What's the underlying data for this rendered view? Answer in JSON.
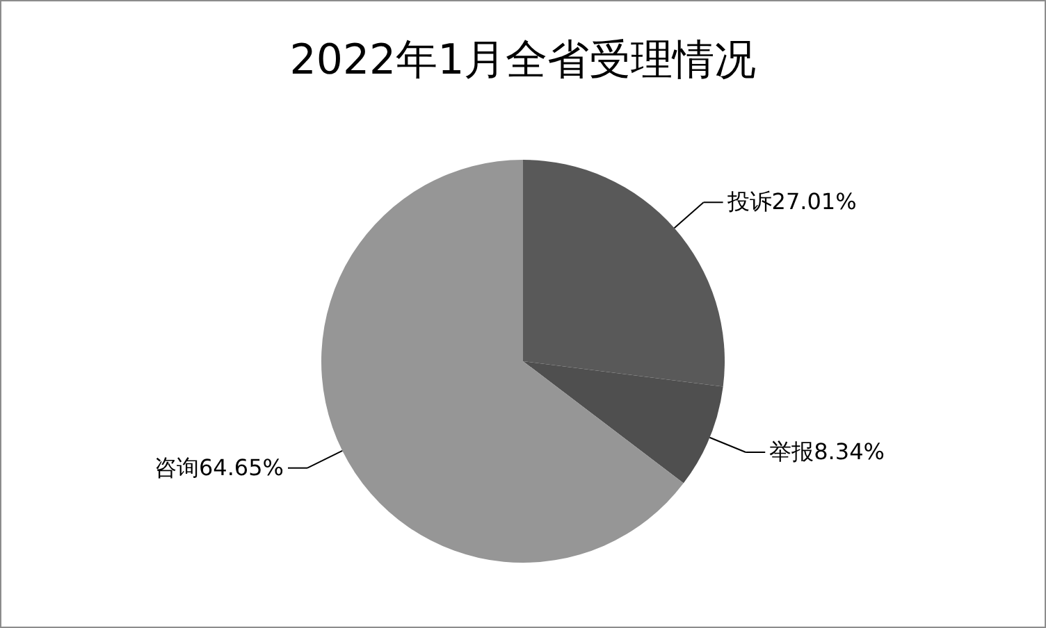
{
  "chart_data": {
    "type": "pie",
    "title": "2022年1月全省受理情况",
    "categories": [
      "投诉",
      "举报",
      "咨询"
    ],
    "values": [
      27.01,
      8.34,
      64.65
    ],
    "value_labels": [
      "27.01%",
      "8.34%",
      "64.65%"
    ],
    "colors": [
      "#595959",
      "#4f4f4f",
      "#969696"
    ]
  }
}
